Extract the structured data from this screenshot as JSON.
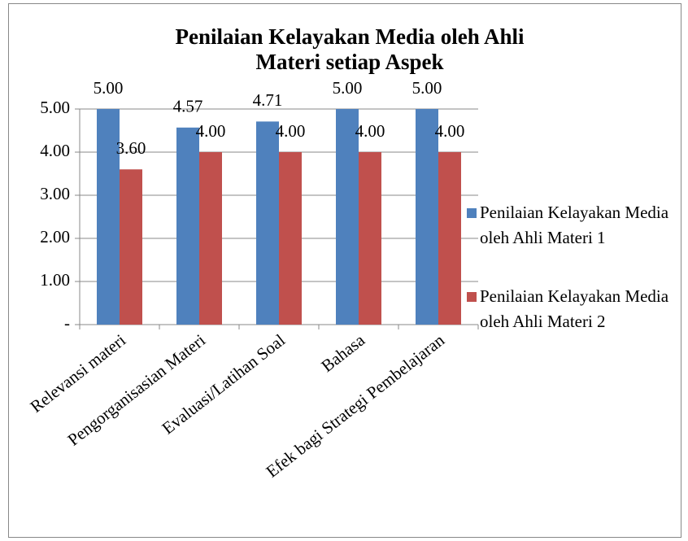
{
  "chart_data": {
    "type": "bar",
    "title": "Penilaian Kelayakan Media oleh Ahli Materi setiap Aspek",
    "categories": [
      "Relevansi materi",
      "Pengorganisasian Materi",
      "Evaluasi/Latihan Soal",
      "Bahasa",
      "Efek bagi Strategi Pembelajaran"
    ],
    "series": [
      {
        "name": "Penilaian Kelayakan Media oleh Ahli Materi 1",
        "color": "#4f81bd",
        "values": [
          5,
          4.57,
          4.71,
          5,
          5
        ],
        "value_labels": [
          "5.00",
          "4.57",
          "4.71",
          "5.00",
          "5.00"
        ]
      },
      {
        "name": "Penilaian Kelayakan Media oleh Ahli Materi 2",
        "color": "#c0504d",
        "values": [
          3.6,
          4,
          4,
          4,
          4
        ],
        "value_labels": [
          "3.60",
          "4.00",
          "4.00",
          "4.00",
          "4.00"
        ]
      }
    ],
    "ylim": [
      0,
      5
    ],
    "yticks": [
      {
        "value": 0,
        "label": "-"
      },
      {
        "value": 1,
        "label": "1.00"
      },
      {
        "value": 2,
        "label": "2.00"
      },
      {
        "value": 3,
        "label": "3.00"
      },
      {
        "value": 4,
        "label": "4.00"
      },
      {
        "value": 5,
        "label": "5.00"
      }
    ],
    "grid": true,
    "legend": "right"
  }
}
